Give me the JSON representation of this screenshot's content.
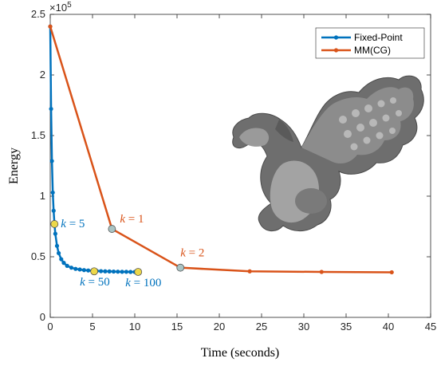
{
  "chart_data": {
    "type": "line",
    "xlabel": "Time (seconds)",
    "ylabel": "Energy",
    "y_exponent": "×10^5",
    "xlim": [
      0,
      45
    ],
    "ylim": [
      0,
      2.5
    ],
    "x_ticks": [
      0,
      5,
      10,
      15,
      20,
      25,
      30,
      35,
      40,
      45
    ],
    "y_ticks": [
      0,
      0.5,
      1,
      1.5,
      2,
      2.5
    ],
    "y_tick_labels": [
      "0",
      "0.5",
      "1",
      "1.5",
      "2",
      "2.5"
    ],
    "legend_position": "top-right",
    "grid": false,
    "series": [
      {
        "name": "Fixed-Point",
        "color": "#0072BD",
        "x": [
          0,
          0.1,
          0.2,
          0.3,
          0.4,
          0.5,
          0.6,
          0.8,
          1.0,
          1.3,
          1.6,
          2.0,
          2.5,
          3.0,
          3.5,
          4.0,
          4.5,
          5.0,
          5.5,
          6.0,
          6.5,
          7.0,
          7.5,
          8.0,
          8.5,
          9.0,
          9.5,
          10.0,
          10.4
        ],
        "y": [
          2.4,
          1.72,
          1.29,
          1.03,
          0.88,
          0.77,
          0.69,
          0.59,
          0.53,
          0.48,
          0.45,
          0.425,
          0.41,
          0.4,
          0.395,
          0.39,
          0.387,
          0.385,
          0.383,
          0.381,
          0.38,
          0.379,
          0.378,
          0.377,
          0.376,
          0.376,
          0.375,
          0.375,
          0.375
        ]
      },
      {
        "name": "MM(CG)",
        "color": "#D95319",
        "x": [
          0,
          7.3,
          15.4,
          23.6,
          32.1,
          40.4
        ],
        "y": [
          2.4,
          0.73,
          0.41,
          0.38,
          0.375,
          0.372
        ]
      }
    ],
    "highlights": [
      {
        "x": 0.5,
        "y": 0.77,
        "label": "k = 5",
        "fill": "#EDD84A",
        "text_color": "#0072BD"
      },
      {
        "x": 5.2,
        "y": 0.38,
        "label": "k = 50",
        "fill": "#EDD84A",
        "text_color": "#0072BD"
      },
      {
        "x": 10.4,
        "y": 0.375,
        "label": "k = 100",
        "fill": "#EDD84A",
        "text_color": "#0072BD"
      },
      {
        "x": 7.3,
        "y": 0.73,
        "label": "k = 1",
        "fill": "#A9C4C4",
        "text_color": "#D95319"
      },
      {
        "x": 15.4,
        "y": 0.41,
        "label": "k = 2",
        "fill": "#A9C4C4",
        "text_color": "#D95319"
      }
    ]
  }
}
